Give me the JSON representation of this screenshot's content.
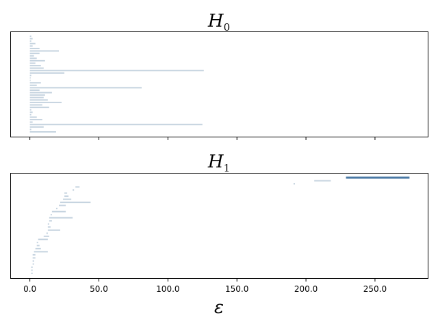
{
  "chart_data": [
    {
      "type": "barcode",
      "title": "H",
      "title_subscript": "0",
      "xlim": [
        -13.7,
        288.7
      ],
      "bar_color": "#c5d3df",
      "bars": [
        [
          0,
          1
        ],
        [
          0,
          2
        ],
        [
          0,
          1
        ],
        [
          0,
          4
        ],
        [
          0,
          2
        ],
        [
          0,
          7
        ],
        [
          0,
          21
        ],
        [
          0,
          7
        ],
        [
          0,
          3
        ],
        [
          0,
          5
        ],
        [
          0,
          11
        ],
        [
          0,
          4
        ],
        [
          0,
          8
        ],
        [
          0,
          10
        ],
        [
          0,
          126
        ],
        [
          0,
          25
        ],
        [
          0,
          1
        ],
        [
          0,
          0.5
        ],
        [
          0,
          0.5
        ],
        [
          0,
          8
        ],
        [
          0,
          5
        ],
        [
          0,
          81
        ],
        [
          0,
          7
        ],
        [
          0,
          16
        ],
        [
          0,
          11
        ],
        [
          0,
          10
        ],
        [
          0,
          13
        ],
        [
          0,
          23
        ],
        [
          0,
          9
        ],
        [
          0,
          14
        ],
        [
          0,
          1
        ],
        [
          0,
          2
        ],
        [
          0,
          1
        ],
        [
          0,
          5
        ],
        [
          0,
          9
        ],
        [
          0,
          2
        ],
        [
          0,
          125
        ],
        [
          0,
          10
        ],
        [
          0,
          1
        ],
        [
          0,
          19
        ]
      ]
    },
    {
      "type": "barcode",
      "title": "H",
      "title_subscript": "1",
      "xlim": [
        -13.7,
        288.7
      ],
      "xlabel": "ε",
      "bar_color": "#c5d3df",
      "highlight_color": "#4a79a5",
      "xticks": [
        "0.0",
        "50.0",
        "100.0",
        "150.0",
        "200.0",
        "250.0"
      ],
      "xtick_values": [
        0,
        50,
        100,
        150,
        200,
        250
      ],
      "highlight_index": 0,
      "bars": [
        [
          229,
          275
        ],
        [
          206,
          218
        ],
        [
          191,
          192
        ],
        [
          33,
          36
        ],
        [
          31,
          32
        ],
        [
          25,
          27
        ],
        [
          25,
          28
        ],
        [
          24,
          30
        ],
        [
          22,
          44
        ],
        [
          21,
          26
        ],
        [
          19,
          20
        ],
        [
          16,
          26
        ],
        [
          15,
          16
        ],
        [
          14,
          31
        ],
        [
          14,
          16
        ],
        [
          13,
          14
        ],
        [
          13,
          15
        ],
        [
          13,
          22
        ],
        [
          12,
          13
        ],
        [
          10,
          14
        ],
        [
          6,
          13
        ],
        [
          5,
          6
        ],
        [
          5,
          7
        ],
        [
          4,
          8
        ],
        [
          3,
          13
        ],
        [
          2,
          4
        ],
        [
          2,
          4
        ],
        [
          2,
          3
        ],
        [
          2,
          3
        ],
        [
          1,
          2
        ],
        [
          1,
          2
        ],
        [
          1,
          2
        ]
      ]
    }
  ]
}
